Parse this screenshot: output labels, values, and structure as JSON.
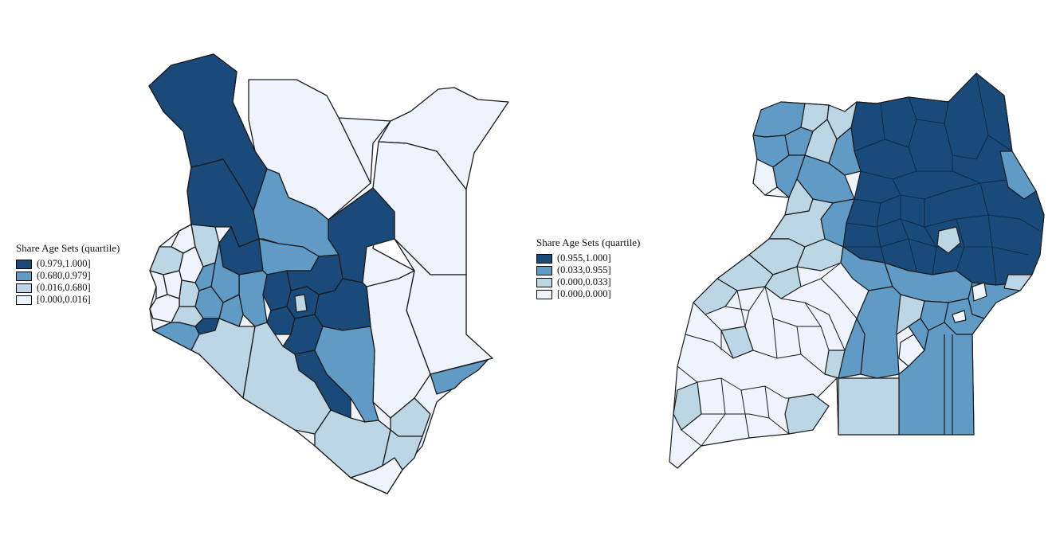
{
  "colors": {
    "q4": "#1a4a7a",
    "q3": "#5f9bc4",
    "q2": "#bcd6e6",
    "q1": "#eef3fc",
    "border": "#1a1a1a",
    "background": "#ffffff"
  },
  "maps": [
    {
      "country": "Kenya",
      "legend": {
        "title": "Share Age Sets (quartile)",
        "items": [
          {
            "label": "(0.979,1.000]",
            "color": "#1a4a7a"
          },
          {
            "label": "(0.680,0.979]",
            "color": "#5f9bc4"
          },
          {
            "label": "(0.016,0.680]",
            "color": "#bcd6e6"
          },
          {
            "label": "[0.000,0.016]",
            "color": "#eef3fc"
          }
        ]
      }
    },
    {
      "country": "Uganda",
      "legend": {
        "title": "Share Age Sets (quartile)",
        "items": [
          {
            "label": "(0.955,1.000]",
            "color": "#1a4a7a"
          },
          {
            "label": "(0.033,0.955]",
            "color": "#5f9bc4"
          },
          {
            "label": "(0.000,0.033]",
            "color": "#bcd6e6"
          },
          {
            "label": "[0.000,0.000]",
            "color": "#eef3fc"
          }
        ]
      }
    }
  ]
}
